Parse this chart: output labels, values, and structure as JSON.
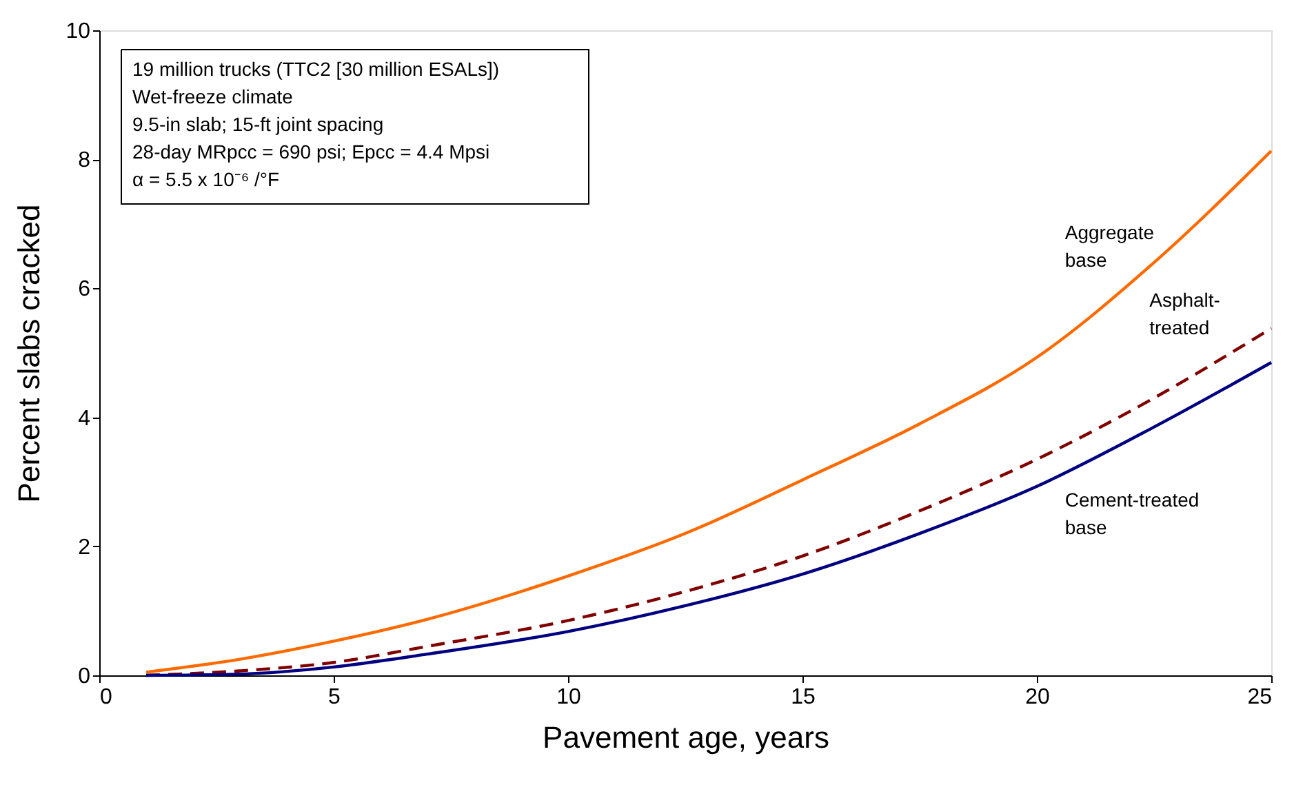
{
  "chart_data": {
    "type": "line",
    "xlabel": "Pavement age, years",
    "ylabel": "Percent slabs cracked",
    "x": [
      1,
      3,
      5,
      7,
      10,
      12.5,
      15,
      17.5,
      20,
      22.5,
      25
    ],
    "series": [
      {
        "name": "Aggregate base",
        "color": "#ff6a00",
        "line_style": "solid",
        "values": [
          0.05,
          0.25,
          0.53,
          0.87,
          1.54,
          2.2,
          3.03,
          3.9,
          4.93,
          6.4,
          8.13
        ]
      },
      {
        "name": "Asphalt-treated",
        "color": "#800000",
        "line_style": "dashed",
        "values": [
          0.0,
          0.07,
          0.2,
          0.45,
          0.85,
          1.3,
          1.85,
          2.55,
          3.35,
          4.3,
          5.38
        ]
      },
      {
        "name": "Cement-treated base",
        "color": "#000080",
        "line_style": "solid",
        "values": [
          0.0,
          0.02,
          0.13,
          0.33,
          0.68,
          1.08,
          1.57,
          2.2,
          2.93,
          3.85,
          4.85
        ]
      }
    ],
    "xlim": [
      0,
      25
    ],
    "xticks": [
      0,
      5,
      10,
      15,
      20,
      25
    ],
    "ylim": [
      0,
      10
    ],
    "yticks": [
      0,
      2,
      4,
      6,
      8,
      10
    ],
    "grid": false,
    "legend": false,
    "marker": "none",
    "annotations": [
      "19 million trucks (TTC2 [30 million ESALs])\nWet-freeze climate\n9.5-in slab; 15-ft joint spacing\n28-day MRpcc = 690 psi; Epcc = 4.4 Mpsi\nα = 5.5 x 10⁻⁶ /°F"
    ]
  }
}
